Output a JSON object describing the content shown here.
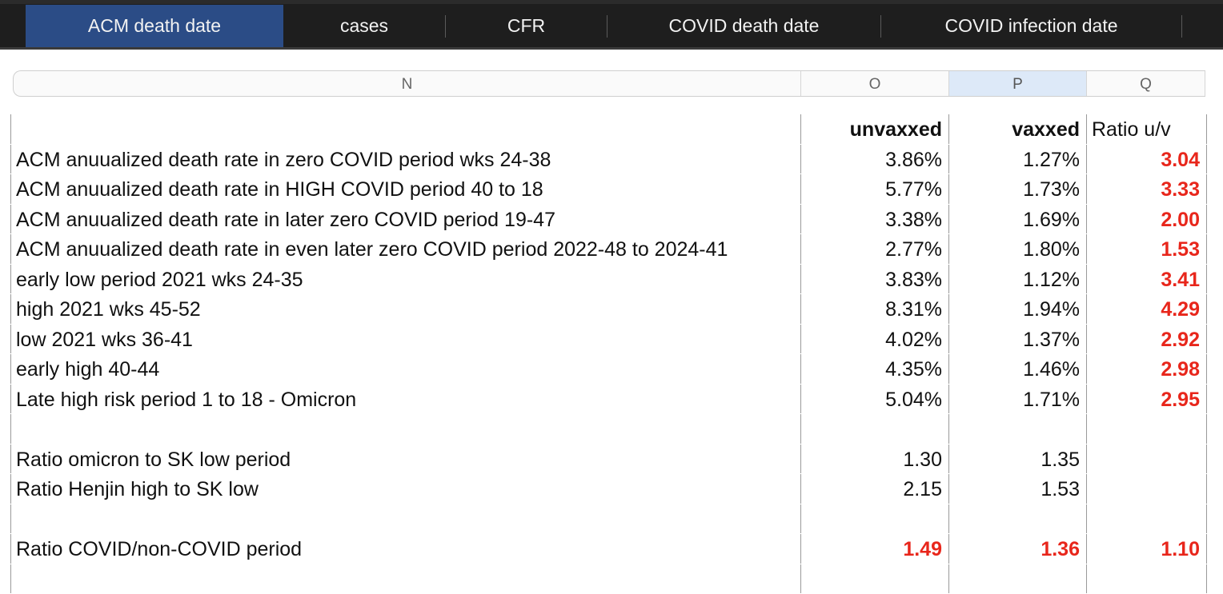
{
  "tabs": [
    {
      "label": "ACM death date",
      "active": true
    },
    {
      "label": "cases",
      "active": false
    },
    {
      "label": "CFR",
      "active": false
    },
    {
      "label": "COVID death date",
      "active": false
    },
    {
      "label": "COVID infection date",
      "active": false
    }
  ],
  "columns": {
    "n": "N",
    "o": "O",
    "p": "P",
    "q": "Q",
    "selected": "P"
  },
  "header_row": {
    "o": "unvaxxed",
    "p": "vaxxed",
    "q": "Ratio u/v"
  },
  "rows": [
    {
      "label": "ACM anuualized death rate in zero COVID period wks 24-38",
      "unvaxxed": "3.86%",
      "vaxxed": "1.27%",
      "ratio": "3.04"
    },
    {
      "label": "ACM anuualized death rate in HIGH COVID period 40 to 18",
      "unvaxxed": "5.77%",
      "vaxxed": "1.73%",
      "ratio": "3.33"
    },
    {
      "label": "ACM anuualized death rate in later zero COVID period 19-47",
      "unvaxxed": "3.38%",
      "vaxxed": "1.69%",
      "ratio": "2.00"
    },
    {
      "label": "ACM anuualized death rate in even later zero COVID period 2022-48 to 2024-41",
      "unvaxxed": "2.77%",
      "vaxxed": "1.80%",
      "ratio": "1.53"
    },
    {
      "label": "early low period 2021 wks 24-35",
      "unvaxxed": "3.83%",
      "vaxxed": "1.12%",
      "ratio": "3.41"
    },
    {
      "label": "high 2021 wks 45-52",
      "unvaxxed": "8.31%",
      "vaxxed": "1.94%",
      "ratio": "4.29"
    },
    {
      "label": "low 2021 wks 36-41",
      "unvaxxed": "4.02%",
      "vaxxed": "1.37%",
      "ratio": "2.92"
    },
    {
      "label": "early high 40-44",
      "unvaxxed": "4.35%",
      "vaxxed": "1.46%",
      "ratio": "2.98"
    },
    {
      "label": "Late high risk period 1 to 18 - Omicron",
      "unvaxxed": "5.04%",
      "vaxxed": "1.71%",
      "ratio": "2.95"
    }
  ],
  "ratio_rows": [
    {
      "label": "Ratio omicron to SK low period",
      "unvaxxed": "1.30",
      "vaxxed": "1.35",
      "ratio": ""
    },
    {
      "label": "Ratio Henjin high to SK low",
      "unvaxxed": "2.15",
      "vaxxed": "1.53",
      "ratio": ""
    }
  ],
  "summary_row": {
    "label": "Ratio COVID/non-COVID period",
    "unvaxxed": "1.49",
    "vaxxed": "1.36",
    "ratio": "1.10"
  },
  "colors": {
    "accent_tab": "#2b4c86",
    "highlight_text": "#e8261b",
    "selected_column": "#dde9f8"
  }
}
